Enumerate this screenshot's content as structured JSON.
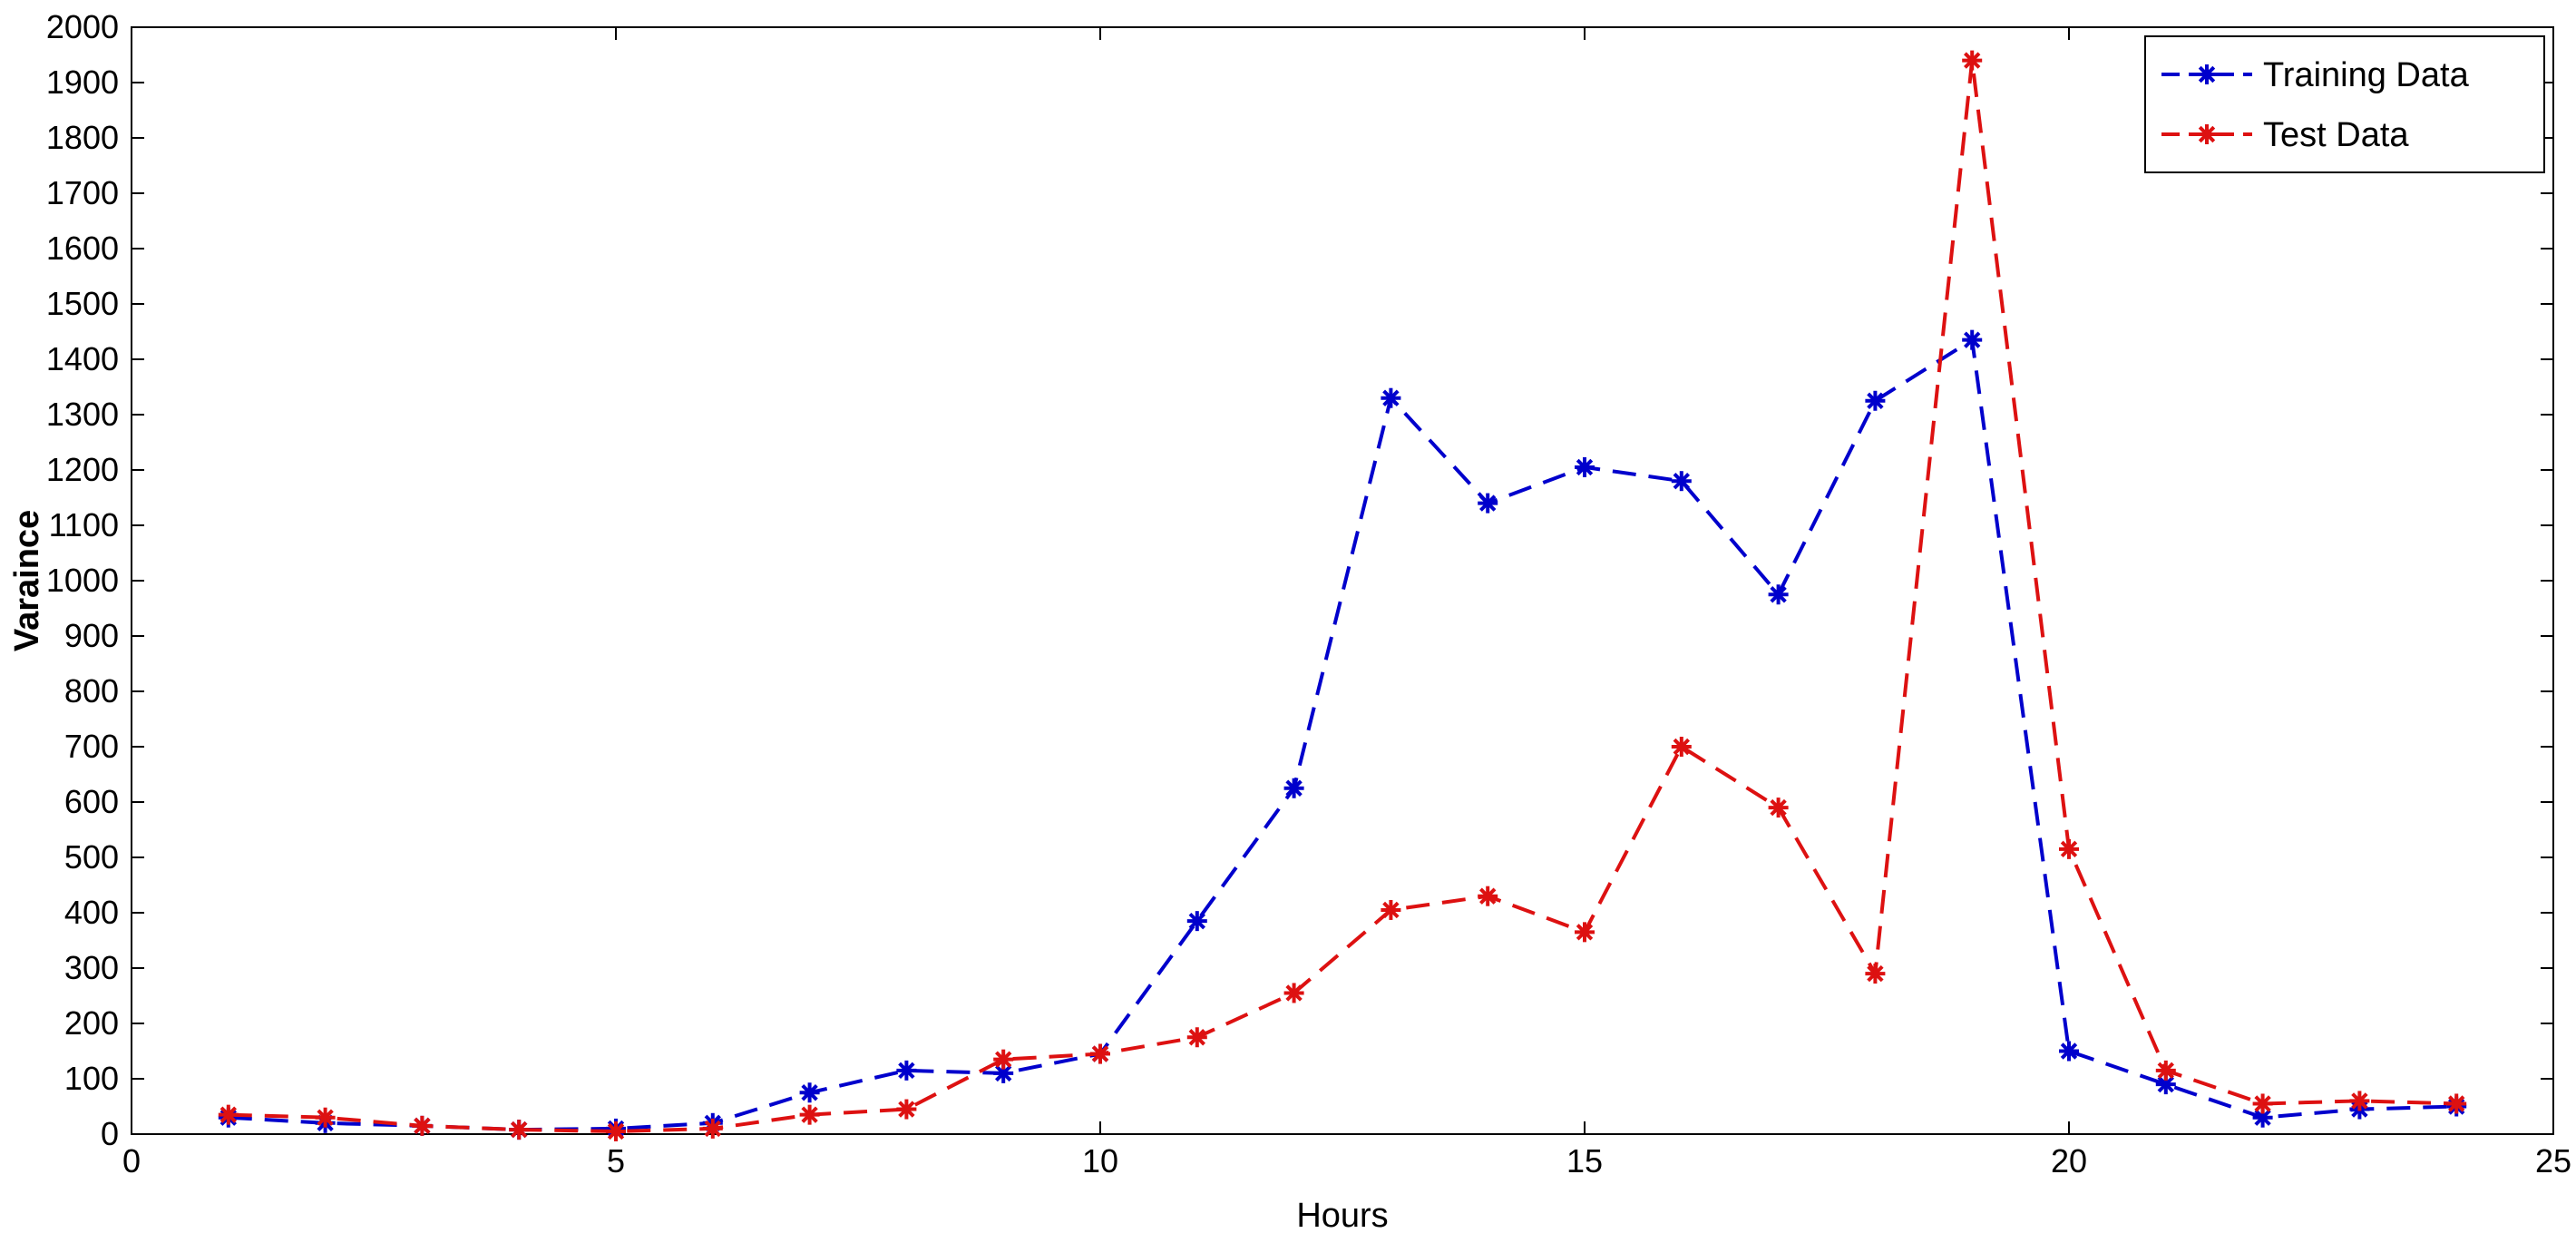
{
  "chart_data": {
    "type": "line",
    "title": "",
    "xlabel": "Hours",
    "ylabel": "Varaince",
    "xlim": [
      0,
      25
    ],
    "ylim": [
      0,
      2000
    ],
    "xticks": [
      0,
      5,
      10,
      15,
      20,
      25
    ],
    "yticks": [
      0,
      100,
      200,
      300,
      400,
      500,
      600,
      700,
      800,
      900,
      1000,
      1100,
      1200,
      1300,
      1400,
      1500,
      1600,
      1700,
      1800,
      1900,
      2000
    ],
    "grid": false,
    "legend_position": "top-right",
    "x": [
      1,
      2,
      3,
      4,
      5,
      6,
      7,
      8,
      9,
      10,
      11,
      12,
      13,
      14,
      15,
      16,
      17,
      18,
      19,
      20,
      21,
      22,
      23,
      24
    ],
    "series": [
      {
        "name": "Training Data",
        "color": "#0000cc",
        "marker": "asterisk",
        "line_style": "dashed",
        "values": [
          30,
          20,
          15,
          8,
          10,
          20,
          75,
          115,
          110,
          145,
          385,
          625,
          1330,
          1140,
          1205,
          1180,
          975,
          1325,
          1435,
          150,
          90,
          30,
          45,
          50
        ]
      },
      {
        "name": "Test Data",
        "color": "#dd1111",
        "marker": "asterisk",
        "line_style": "dashed",
        "values": [
          35,
          30,
          15,
          8,
          5,
          10,
          35,
          45,
          135,
          145,
          175,
          255,
          405,
          430,
          365,
          700,
          590,
          290,
          1940,
          515,
          115,
          55,
          60,
          55
        ]
      }
    ]
  }
}
